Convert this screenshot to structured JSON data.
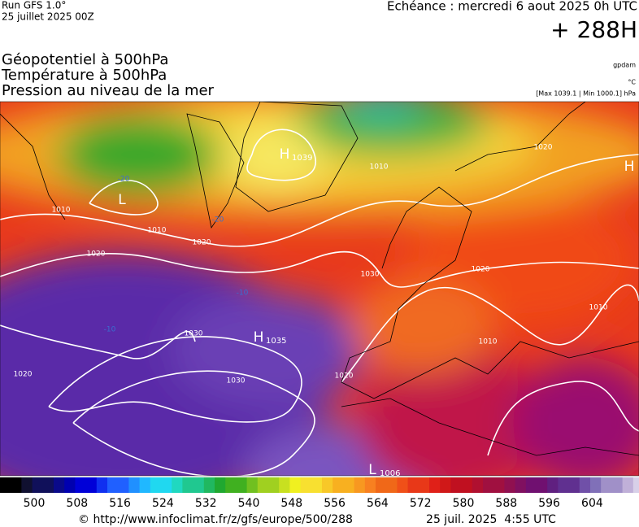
{
  "header": {
    "run": "Run GFS 1.0°",
    "run_date": "25 juillet 2025 00Z",
    "valid": "Echéance : mercredi 6 aout 2025 0h UTC",
    "lead": "+ 288H"
  },
  "fields": [
    "Géopotentiel à 500hPa",
    "Température à 500hPa",
    "Pression au niveau de la mer"
  ],
  "units": {
    "geopotential": "gpdam",
    "temperature": "°C",
    "pressure": "[Max 1039.1 | Min 1000.1] hPa"
  },
  "map": {
    "centers": [
      {
        "letter": "H",
        "value": "1039"
      },
      {
        "letter": "H",
        "value": "1035"
      },
      {
        "letter": "L",
        "value": null
      },
      {
        "letter": "L",
        "value": "1006"
      },
      {
        "letter": "H",
        "value": null
      }
    ],
    "isobar_labels": [
      "1010",
      "1010",
      "1020",
      "1020",
      "1030",
      "1030",
      "1020",
      "1020",
      "1010",
      "1010",
      "1020",
      "1010",
      "1030",
      "1020"
    ],
    "temperature_labels": [
      "-20",
      "-20",
      "-10",
      "-10"
    ]
  },
  "colorbar": {
    "labels": [
      500,
      508,
      516,
      524,
      532,
      540,
      548,
      556,
      564,
      572,
      580,
      588,
      596,
      604
    ]
  },
  "footer": {
    "source": "© http://www.infoclimat.fr/z/gfs/europe/500/288",
    "generated": "25 juil. 2025  4:55 UTC"
  }
}
